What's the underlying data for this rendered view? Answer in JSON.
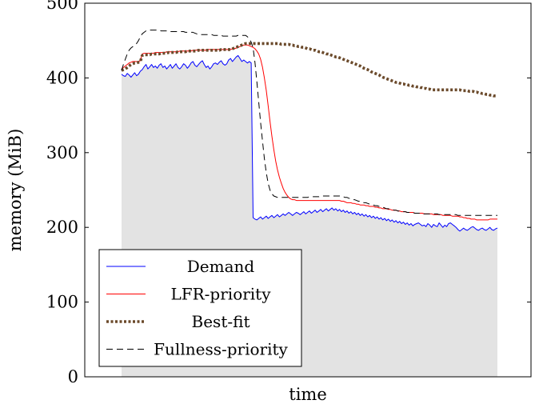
{
  "chart_data": {
    "type": "line",
    "title": "",
    "xlabel": "time",
    "ylabel": "memory (MiB)",
    "ylim": [
      0,
      500
    ],
    "yticks": [
      0,
      100,
      200,
      300,
      400,
      500
    ],
    "x_ticks_shown": false,
    "grid": false,
    "legend_position": "bottom-left",
    "x": [
      0,
      0.5,
      1,
      1.5,
      2,
      2.5,
      3,
      3.5,
      4,
      4.5,
      5,
      5.5,
      6,
      6.5,
      7,
      7.5,
      8,
      8.5,
      9,
      9.5,
      10,
      10.5,
      11,
      11.5,
      12,
      12.5,
      13,
      13.5,
      14,
      14.5,
      15,
      15.5,
      16,
      16.5,
      17,
      17.5,
      18,
      18.5,
      19,
      19.5,
      20,
      20.5,
      21,
      21.5,
      22,
      22.5,
      23,
      23.5,
      24,
      24.5,
      25,
      25.5,
      26,
      26.5,
      27,
      27.5,
      28,
      28.5,
      29,
      29.5,
      30,
      30.5,
      31,
      31.5,
      32,
      32.5,
      33,
      33.5,
      34,
      34.5,
      35,
      35.5,
      36,
      36.5,
      37,
      37.5,
      38,
      38.5,
      39,
      39.5,
      40,
      40.5,
      41,
      41.5,
      42,
      42.5,
      43,
      43.5,
      44,
      44.5,
      45,
      45.5,
      46,
      46.5,
      47,
      47.5,
      48,
      48.5,
      49,
      49.5,
      50,
      50.5,
      51,
      51.5,
      52,
      52.5,
      53,
      53.5,
      54,
      54.5,
      55,
      55.5,
      56,
      56.5,
      57,
      57.5,
      58,
      58.5,
      59,
      59.5,
      60,
      60.5,
      61,
      61.5,
      62,
      62.5,
      63,
      63.5,
      64,
      64.5,
      65,
      65.5,
      66,
      66.5,
      67,
      67.5,
      68,
      68.5,
      69,
      69.5,
      70,
      70.5,
      71,
      71.5,
      72,
      72.5,
      73,
      73.5,
      74,
      74.5,
      75,
      75.5,
      76,
      76.5,
      77,
      77.5,
      78,
      78.5,
      79,
      79.5,
      80,
      80.5,
      81,
      81.5,
      82,
      82.5,
      83,
      83.5,
      84,
      84.5,
      85,
      85.5,
      86,
      86.5,
      87,
      87.5,
      88,
      88.5,
      89,
      89.5,
      90,
      90.5,
      91,
      91.5,
      92,
      92.5,
      93,
      93.5,
      94,
      94.5,
      95,
      95.5,
      96,
      96.5,
      97,
      97.5,
      98,
      98.5,
      99,
      99.5,
      100
    ],
    "series": [
      {
        "name": "Demand",
        "color": "#0000ff",
        "style": "solid",
        "filled": true,
        "fill_color": "#e3e3e3",
        "values": [
          405,
          403,
          402,
          406,
          404,
          401,
          404,
          407,
          403,
          405,
          409,
          411,
          415,
          418,
          412,
          415,
          418,
          414,
          416,
          413,
          417,
          419,
          414,
          416,
          412,
          415,
          418,
          413,
          416,
          419,
          414,
          412,
          415,
          419,
          417,
          413,
          416,
          420,
          422,
          417,
          415,
          418,
          421,
          423,
          418,
          414,
          416,
          412,
          415,
          419,
          420,
          418,
          421,
          423,
          419,
          417,
          419,
          424,
          426,
          422,
          425,
          428,
          430,
          426,
          422,
          424,
          422,
          420,
          422,
          420,
          213,
          211,
          210,
          212,
          214,
          211,
          213,
          215,
          212,
          214,
          216,
          213,
          215,
          217,
          214,
          216,
          218,
          216,
          218,
          220,
          218,
          216,
          218,
          220,
          219,
          217,
          219,
          221,
          218,
          220,
          222,
          219,
          221,
          223,
          220,
          222,
          224,
          221,
          223,
          225,
          222,
          224,
          226,
          223,
          225,
          222,
          224,
          221,
          223,
          220,
          222,
          219,
          221,
          218,
          220,
          217,
          219,
          216,
          218,
          215,
          217,
          214,
          216,
          213,
          215,
          212,
          214,
          211,
          213,
          210,
          212,
          209,
          211,
          208,
          210,
          207,
          209,
          206,
          208,
          205,
          207,
          204,
          206,
          203,
          205,
          202,
          204,
          205,
          206,
          204,
          202,
          203,
          201,
          205,
          203,
          200,
          204,
          202,
          201,
          206,
          203,
          200,
          203,
          201,
          205,
          206,
          204,
          202,
          200,
          197,
          195,
          197,
          199,
          197,
          196,
          198,
          200,
          201,
          199,
          197,
          196,
          198,
          199,
          197,
          196,
          198,
          200,
          197,
          196,
          198,
          199
        ]
      },
      {
        "name": "LFR-priority",
        "color": "#ff0000",
        "style": "solid",
        "filled": false,
        "values": [
          412,
          414,
          416,
          418,
          420,
          421,
          422,
          422,
          422,
          422,
          423,
          432,
          433,
          433,
          433,
          433,
          433,
          433,
          434,
          434,
          434,
          434,
          434,
          434,
          435,
          435,
          435,
          435,
          435,
          435,
          435,
          436,
          436,
          436,
          436,
          436,
          436,
          436,
          437,
          437,
          437,
          437,
          437,
          437,
          437,
          437,
          438,
          438,
          438,
          438,
          438,
          438,
          438,
          438,
          438,
          438,
          438,
          438,
          438,
          439,
          439,
          440,
          441,
          442,
          443,
          444,
          444,
          444,
          443,
          442,
          441,
          439,
          436,
          432,
          425,
          414,
          400,
          383,
          363,
          342,
          322,
          304,
          289,
          277,
          267,
          259,
          252,
          247,
          243,
          240,
          238,
          237,
          237,
          236,
          236,
          236,
          236,
          236,
          236,
          236,
          236,
          236,
          236,
          236,
          236,
          236,
          236,
          236,
          236,
          236,
          236,
          236,
          236,
          236,
          236,
          236,
          236,
          235,
          235,
          234,
          233,
          233,
          233,
          232,
          232,
          231,
          231,
          230,
          230,
          230,
          229,
          229,
          228,
          228,
          228,
          227,
          227,
          226,
          226,
          225,
          225,
          225,
          224,
          224,
          223,
          223,
          223,
          222,
          222,
          221,
          221,
          221,
          220,
          220,
          220,
          220,
          219,
          219,
          219,
          219,
          219,
          218,
          218,
          218,
          218,
          218,
          217,
          217,
          217,
          217,
          217,
          216,
          216,
          216,
          216,
          216,
          215,
          215,
          215,
          215,
          214,
          214,
          213,
          213,
          212,
          212,
          211,
          211,
          211,
          210,
          210,
          210,
          210,
          210,
          210,
          210,
          211,
          211,
          211,
          211,
          211
        ]
      },
      {
        "name": "Best-fit",
        "color": "#6b4a2b",
        "style": "dotted",
        "filled": false,
        "values": [
          410,
          411,
          412,
          414,
          416,
          418,
          419,
          420,
          420,
          421,
          422,
          430,
          431,
          431,
          431,
          431,
          432,
          432,
          432,
          432,
          432,
          433,
          433,
          433,
          433,
          434,
          434,
          434,
          434,
          434,
          435,
          435,
          435,
          435,
          435,
          436,
          436,
          436,
          436,
          436,
          436,
          437,
          437,
          437,
          437,
          437,
          437,
          437,
          437,
          437,
          437,
          437,
          437,
          438,
          438,
          438,
          438,
          438,
          438,
          439,
          440,
          441,
          442,
          443,
          444,
          445,
          446,
          446,
          446,
          446,
          446,
          446,
          446,
          446,
          446,
          446,
          446,
          446,
          446,
          446,
          446,
          446,
          446,
          446,
          446,
          445,
          445,
          445,
          445,
          445,
          444,
          444,
          443,
          443,
          442,
          442,
          441,
          441,
          440,
          439,
          439,
          438,
          437,
          437,
          436,
          435,
          435,
          434,
          433,
          432,
          432,
          431,
          430,
          429,
          428,
          428,
          427,
          426,
          425,
          424,
          423,
          422,
          421,
          420,
          419,
          418,
          417,
          416,
          414,
          413,
          412,
          411,
          410,
          408,
          407,
          406,
          405,
          404,
          402,
          401,
          400,
          399,
          398,
          397,
          396,
          395,
          394,
          394,
          393,
          392,
          392,
          391,
          391,
          390,
          390,
          389,
          389,
          388,
          388,
          387,
          387,
          386,
          386,
          385,
          385,
          384,
          384,
          384,
          384,
          384,
          384,
          384,
          384,
          384,
          384,
          384,
          384,
          384,
          384,
          384,
          384,
          383,
          383,
          383,
          383,
          382,
          382,
          382,
          381,
          381,
          380,
          380,
          379,
          379,
          378,
          378,
          377,
          377,
          376,
          376,
          376
        ]
      },
      {
        "name": "Fullness-priority",
        "color": "#000000",
        "style": "dashed",
        "filled": false,
        "values": [
          410,
          418,
          425,
          432,
          437,
          440,
          442,
          444,
          446,
          450,
          455,
          459,
          461,
          463,
          464,
          464,
          464,
          464,
          464,
          464,
          464,
          463,
          463,
          463,
          463,
          463,
          462,
          462,
          462,
          462,
          462,
          462,
          462,
          462,
          461,
          461,
          461,
          461,
          461,
          460,
          459,
          458,
          458,
          458,
          458,
          458,
          458,
          458,
          458,
          457,
          457,
          457,
          457,
          457,
          456,
          456,
          456,
          456,
          456,
          456,
          456,
          456,
          457,
          457,
          457,
          457,
          457,
          455,
          452,
          448,
          440,
          420,
          395,
          368,
          340,
          315,
          292,
          273,
          259,
          250,
          245,
          242,
          241,
          240,
          240,
          240,
          240,
          240,
          240,
          240,
          240,
          240,
          240,
          240,
          240,
          240,
          240,
          240,
          240,
          240,
          241,
          241,
          241,
          241,
          241,
          241,
          242,
          242,
          242,
          242,
          242,
          242,
          242,
          242,
          242,
          242,
          242,
          241,
          241,
          240,
          240,
          239,
          238,
          237,
          237,
          236,
          235,
          235,
          234,
          233,
          233,
          232,
          231,
          231,
          230,
          229,
          229,
          228,
          227,
          227,
          226,
          225,
          225,
          224,
          224,
          223,
          223,
          222,
          222,
          221,
          221,
          221,
          220,
          220,
          220,
          220,
          219,
          219,
          219,
          219,
          219,
          218,
          218,
          218,
          218,
          218,
          218,
          218,
          218,
          217,
          217,
          217,
          217,
          217,
          217,
          217,
          217,
          217,
          217,
          216,
          216,
          216,
          216,
          216,
          216,
          216,
          216,
          216,
          216,
          216,
          216,
          216,
          216,
          216,
          216,
          216,
          216,
          216,
          216,
          216,
          216
        ]
      }
    ]
  }
}
